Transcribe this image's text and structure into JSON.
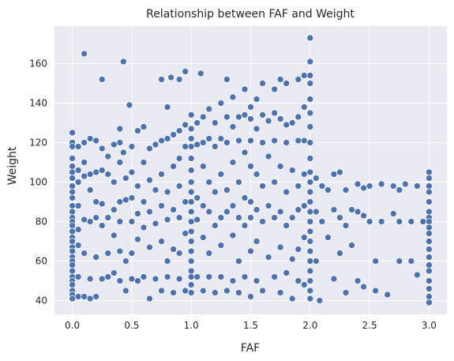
{
  "chart_data": {
    "type": "scatter",
    "title": "Relationship between FAF and Weight",
    "xlabel": "FAF",
    "ylabel": "Weight",
    "xlim": [
      -0.15,
      3.15
    ],
    "ylim": [
      33,
      179
    ],
    "xticks": [
      0.0,
      0.5,
      1.0,
      1.5,
      2.0,
      2.5,
      3.0
    ],
    "xtick_labels": [
      "0.0",
      "0.5",
      "1.0",
      "1.5",
      "2.0",
      "2.5",
      "3.0"
    ],
    "yticks": [
      40,
      60,
      80,
      100,
      120,
      140,
      160
    ],
    "ytick_labels": [
      "40",
      "60",
      "80",
      "100",
      "120",
      "140",
      "160"
    ],
    "grid": true,
    "background": "#eaeaf2",
    "grid_color": "#ffffff",
    "marker_color": "#4c72b0",
    "marker_edge": "#ffffff",
    "points": [
      [
        0.0,
        125
      ],
      [
        0.0,
        120
      ],
      [
        0.0,
        118
      ],
      [
        0.0,
        112
      ],
      [
        0.0,
        108
      ],
      [
        0.0,
        105
      ],
      [
        0.0,
        102
      ],
      [
        0.0,
        98
      ],
      [
        0.0,
        95
      ],
      [
        0.0,
        92
      ],
      [
        0.0,
        88
      ],
      [
        0.0,
        85
      ],
      [
        0.0,
        82
      ],
      [
        0.0,
        80
      ],
      [
        0.0,
        78
      ],
      [
        0.0,
        75
      ],
      [
        0.0,
        72
      ],
      [
        0.0,
        70
      ],
      [
        0.0,
        67
      ],
      [
        0.0,
        65
      ],
      [
        0.0,
        62
      ],
      [
        0.0,
        60
      ],
      [
        0.0,
        58
      ],
      [
        0.0,
        55
      ],
      [
        0.0,
        52
      ],
      [
        0.0,
        50
      ],
      [
        0.0,
        48
      ],
      [
        0.0,
        45
      ],
      [
        0.0,
        43
      ],
      [
        0.0,
        41
      ],
      [
        0.05,
        118
      ],
      [
        0.05,
        106
      ],
      [
        0.05,
        100
      ],
      [
        0.05,
        88
      ],
      [
        0.05,
        76
      ],
      [
        0.05,
        68
      ],
      [
        0.05,
        52
      ],
      [
        0.05,
        42
      ],
      [
        0.1,
        165
      ],
      [
        0.1,
        120
      ],
      [
        0.1,
        110
      ],
      [
        0.1,
        103
      ],
      [
        0.1,
        81
      ],
      [
        0.1,
        64
      ],
      [
        0.1,
        42
      ],
      [
        0.15,
        122
      ],
      [
        0.15,
        104
      ],
      [
        0.15,
        96
      ],
      [
        0.15,
        80
      ],
      [
        0.15,
        51
      ],
      [
        0.15,
        41
      ],
      [
        0.2,
        121
      ],
      [
        0.2,
        105
      ],
      [
        0.2,
        90
      ],
      [
        0.2,
        82
      ],
      [
        0.2,
        62
      ],
      [
        0.2,
        42
      ],
      [
        0.25,
        152
      ],
      [
        0.25,
        117
      ],
      [
        0.25,
        106
      ],
      [
        0.25,
        89
      ],
      [
        0.25,
        78
      ],
      [
        0.25,
        51
      ],
      [
        0.3,
        113
      ],
      [
        0.3,
        104
      ],
      [
        0.3,
        82
      ],
      [
        0.3,
        64
      ],
      [
        0.3,
        52
      ],
      [
        0.35,
        119
      ],
      [
        0.35,
        100
      ],
      [
        0.35,
        86
      ],
      [
        0.35,
        73
      ],
      [
        0.35,
        54
      ],
      [
        0.4,
        127
      ],
      [
        0.4,
        120
      ],
      [
        0.4,
        110
      ],
      [
        0.4,
        90
      ],
      [
        0.4,
        80
      ],
      [
        0.4,
        65
      ],
      [
        0.4,
        50
      ],
      [
        0.43,
        161
      ],
      [
        0.43,
        115
      ],
      [
        0.45,
        102
      ],
      [
        0.45,
        91
      ],
      [
        0.45,
        60
      ],
      [
        0.45,
        45
      ],
      [
        0.48,
        139
      ],
      [
        0.5,
        118
      ],
      [
        0.5,
        105
      ],
      [
        0.5,
        92
      ],
      [
        0.5,
        80
      ],
      [
        0.5,
        64
      ],
      [
        0.5,
        51
      ],
      [
        0.55,
        126
      ],
      [
        0.55,
        98
      ],
      [
        0.55,
        84
      ],
      [
        0.55,
        71
      ],
      [
        0.55,
        50
      ],
      [
        0.6,
        128
      ],
      [
        0.6,
        110
      ],
      [
        0.6,
        90
      ],
      [
        0.6,
        77
      ],
      [
        0.6,
        52
      ],
      [
        0.65,
        117
      ],
      [
        0.65,
        101
      ],
      [
        0.65,
        85
      ],
      [
        0.65,
        67
      ],
      [
        0.65,
        41
      ],
      [
        0.7,
        119
      ],
      [
        0.7,
        96
      ],
      [
        0.7,
        79
      ],
      [
        0.7,
        51
      ],
      [
        0.75,
        152
      ],
      [
        0.75,
        121
      ],
      [
        0.75,
        104
      ],
      [
        0.75,
        88
      ],
      [
        0.75,
        70
      ],
      [
        0.75,
        45
      ],
      [
        0.8,
        138
      ],
      [
        0.8,
        122
      ],
      [
        0.8,
        95
      ],
      [
        0.8,
        81
      ],
      [
        0.8,
        60
      ],
      [
        0.8,
        52
      ],
      [
        0.83,
        153
      ],
      [
        0.85,
        124
      ],
      [
        0.85,
        108
      ],
      [
        0.85,
        86
      ],
      [
        0.85,
        66
      ],
      [
        0.85,
        44
      ],
      [
        0.9,
        152
      ],
      [
        0.9,
        126
      ],
      [
        0.9,
        112
      ],
      [
        0.9,
        98
      ],
      [
        0.9,
        82
      ],
      [
        0.9,
        64
      ],
      [
        0.9,
        51
      ],
      [
        0.95,
        156
      ],
      [
        0.95,
        129
      ],
      [
        0.95,
        118
      ],
      [
        0.95,
        90
      ],
      [
        0.95,
        74
      ],
      [
        0.95,
        45
      ],
      [
        1.0,
        134
      ],
      [
        1.0,
        127
      ],
      [
        1.0,
        122
      ],
      [
        1.0,
        118
      ],
      [
        1.0,
        112
      ],
      [
        1.0,
        106
      ],
      [
        1.0,
        100
      ],
      [
        1.0,
        95
      ],
      [
        1.0,
        90
      ],
      [
        1.0,
        85
      ],
      [
        1.0,
        80
      ],
      [
        1.0,
        75
      ],
      [
        1.0,
        70
      ],
      [
        1.0,
        65
      ],
      [
        1.0,
        60
      ],
      [
        1.0,
        55
      ],
      [
        1.0,
        52
      ],
      [
        1.0,
        48
      ],
      [
        1.0,
        44
      ],
      [
        1.05,
        130
      ],
      [
        1.05,
        119
      ],
      [
        1.05,
        92
      ],
      [
        1.05,
        81
      ],
      [
        1.05,
        52
      ],
      [
        1.08,
        155
      ],
      [
        1.1,
        133
      ],
      [
        1.1,
        120
      ],
      [
        1.1,
        108
      ],
      [
        1.1,
        88
      ],
      [
        1.1,
        72
      ],
      [
        1.1,
        45
      ],
      [
        1.15,
        137
      ],
      [
        1.15,
        122
      ],
      [
        1.15,
        100
      ],
      [
        1.15,
        85
      ],
      [
        1.15,
        64
      ],
      [
        1.15,
        52
      ],
      [
        1.2,
        130
      ],
      [
        1.2,
        118
      ],
      [
        1.2,
        95
      ],
      [
        1.2,
        78
      ],
      [
        1.2,
        44
      ],
      [
        1.25,
        140
      ],
      [
        1.25,
        122
      ],
      [
        1.25,
        104
      ],
      [
        1.25,
        82
      ],
      [
        1.25,
        68
      ],
      [
        1.25,
        52
      ],
      [
        1.3,
        152
      ],
      [
        1.3,
        133
      ],
      [
        1.3,
        120
      ],
      [
        1.3,
        96
      ],
      [
        1.3,
        85
      ],
      [
        1.3,
        45
      ],
      [
        1.35,
        143
      ],
      [
        1.35,
        128
      ],
      [
        1.35,
        110
      ],
      [
        1.35,
        88
      ],
      [
        1.35,
        73
      ],
      [
        1.35,
        50
      ],
      [
        1.4,
        133
      ],
      [
        1.4,
        121
      ],
      [
        1.4,
        100
      ],
      [
        1.4,
        82
      ],
      [
        1.4,
        60
      ],
      [
        1.4,
        44
      ],
      [
        1.45,
        147
      ],
      [
        1.45,
        134
      ],
      [
        1.45,
        115
      ],
      [
        1.45,
        92
      ],
      [
        1.45,
        78
      ],
      [
        1.45,
        52
      ],
      [
        1.5,
        138
      ],
      [
        1.5,
        132
      ],
      [
        1.5,
        121
      ],
      [
        1.5,
        108
      ],
      [
        1.5,
        90
      ],
      [
        1.5,
        82
      ],
      [
        1.5,
        65
      ],
      [
        1.5,
        42
      ],
      [
        1.55,
        142
      ],
      [
        1.55,
        127
      ],
      [
        1.55,
        104
      ],
      [
        1.55,
        86
      ],
      [
        1.55,
        70
      ],
      [
        1.55,
        50
      ],
      [
        1.6,
        134
      ],
      [
        1.6,
        120
      ],
      [
        1.6,
        98
      ],
      [
        1.6,
        80
      ],
      [
        1.6,
        45
      ],
      [
        1.6,
        150
      ],
      [
        1.65,
        131
      ],
      [
        1.65,
        113
      ],
      [
        1.65,
        88
      ],
      [
        1.65,
        62
      ],
      [
        1.7,
        147
      ],
      [
        1.7,
        135
      ],
      [
        1.7,
        121
      ],
      [
        1.7,
        100
      ],
      [
        1.7,
        82
      ],
      [
        1.7,
        52
      ],
      [
        1.75,
        152
      ],
      [
        1.75,
        132
      ],
      [
        1.75,
        108
      ],
      [
        1.75,
        85
      ],
      [
        1.75,
        67
      ],
      [
        1.75,
        44
      ],
      [
        1.8,
        150
      ],
      [
        1.8,
        129
      ],
      [
        1.8,
        120
      ],
      [
        1.8,
        95
      ],
      [
        1.8,
        78
      ],
      [
        1.8,
        54
      ],
      [
        1.85,
        130
      ],
      [
        1.85,
        106
      ],
      [
        1.85,
        82
      ],
      [
        1.85,
        61
      ],
      [
        1.85,
        41
      ],
      [
        1.9,
        152
      ],
      [
        1.9,
        133
      ],
      [
        1.9,
        121
      ],
      [
        1.9,
        98
      ],
      [
        1.9,
        86
      ],
      [
        1.9,
        66
      ],
      [
        1.9,
        50
      ],
      [
        1.95,
        154
      ],
      [
        1.95,
        138
      ],
      [
        1.95,
        121
      ],
      [
        1.95,
        104
      ],
      [
        1.95,
        88
      ],
      [
        1.95,
        72
      ],
      [
        1.95,
        48
      ],
      [
        2.0,
        173
      ],
      [
        2.0,
        161
      ],
      [
        2.0,
        154
      ],
      [
        2.0,
        150
      ],
      [
        2.0,
        142
      ],
      [
        2.0,
        135
      ],
      [
        2.0,
        128
      ],
      [
        2.0,
        120
      ],
      [
        2.0,
        112
      ],
      [
        2.0,
        105
      ],
      [
        2.0,
        100
      ],
      [
        2.0,
        95
      ],
      [
        2.0,
        90
      ],
      [
        2.0,
        85
      ],
      [
        2.0,
        80
      ],
      [
        2.0,
        75
      ],
      [
        2.0,
        70
      ],
      [
        2.0,
        65
      ],
      [
        2.0,
        60
      ],
      [
        2.0,
        55
      ],
      [
        2.0,
        50
      ],
      [
        2.0,
        45
      ],
      [
        2.0,
        41
      ],
      [
        2.05,
        102
      ],
      [
        2.05,
        85
      ],
      [
        2.05,
        60
      ],
      [
        2.08,
        40
      ],
      [
        2.1,
        98
      ],
      [
        2.1,
        80
      ],
      [
        2.15,
        96
      ],
      [
        2.15,
        72
      ],
      [
        2.2,
        104
      ],
      [
        2.2,
        86
      ],
      [
        2.2,
        51
      ],
      [
        2.25,
        105
      ],
      [
        2.25,
        82
      ],
      [
        2.25,
        64
      ],
      [
        2.3,
        96
      ],
      [
        2.3,
        78
      ],
      [
        2.3,
        44
      ],
      [
        2.35,
        86
      ],
      [
        2.35,
        68
      ],
      [
        2.4,
        99
      ],
      [
        2.4,
        85
      ],
      [
        2.4,
        50
      ],
      [
        2.45,
        97
      ],
      [
        2.45,
        83
      ],
      [
        2.45,
        47
      ],
      [
        2.5,
        98
      ],
      [
        2.5,
        80
      ],
      [
        2.55,
        60
      ],
      [
        2.55,
        45
      ],
      [
        2.6,
        99
      ],
      [
        2.6,
        80
      ],
      [
        2.65,
        43
      ],
      [
        2.7,
        98
      ],
      [
        2.7,
        84
      ],
      [
        2.75,
        96
      ],
      [
        2.75,
        80
      ],
      [
        2.75,
        60
      ],
      [
        2.8,
        99
      ],
      [
        2.85,
        80
      ],
      [
        2.85,
        60
      ],
      [
        2.9,
        98
      ],
      [
        2.9,
        53
      ],
      [
        2.95,
        80
      ],
      [
        3.0,
        105
      ],
      [
        3.0,
        102
      ],
      [
        3.0,
        98
      ],
      [
        3.0,
        95
      ],
      [
        3.0,
        90
      ],
      [
        3.0,
        85
      ],
      [
        3.0,
        82
      ],
      [
        3.0,
        80
      ],
      [
        3.0,
        77
      ],
      [
        3.0,
        74
      ],
      [
        3.0,
        70
      ],
      [
        3.0,
        66
      ],
      [
        3.0,
        62
      ],
      [
        3.0,
        58
      ],
      [
        3.0,
        55
      ],
      [
        3.0,
        50
      ],
      [
        3.0,
        46
      ],
      [
        3.0,
        42
      ],
      [
        3.0,
        39
      ]
    ]
  }
}
